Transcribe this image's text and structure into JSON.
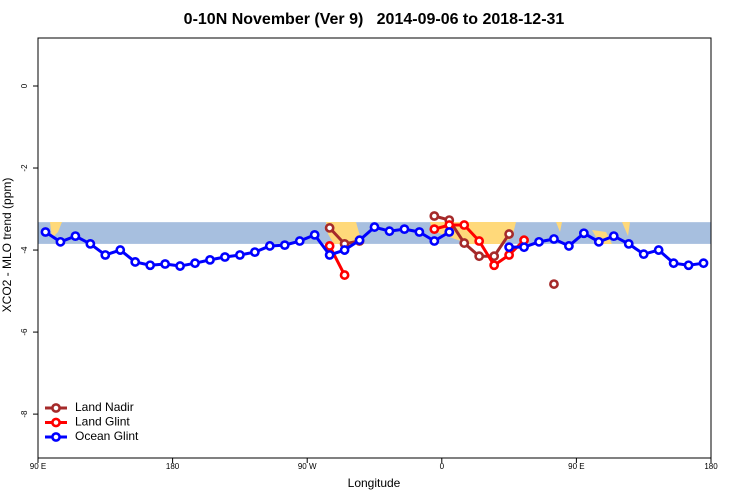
{
  "chart_data": {
    "type": "line",
    "title": "0-10N November (Ver 9)   2014-09-06 to 2018-12-31",
    "x_label": "Longitude",
    "y_label": "XCO2 - MLO trend (ppm)",
    "x": [
      95,
      105,
      115,
      125,
      135,
      145,
      155,
      165,
      175,
      185,
      195,
      205,
      215,
      225,
      235,
      245,
      255,
      265,
      275,
      285,
      295,
      305,
      315,
      325,
      335,
      345,
      355,
      365,
      375,
      385,
      395,
      405,
      415,
      425,
      435,
      445,
      455,
      465,
      475,
      485,
      495,
      505,
      515,
      525,
      535
    ],
    "series": [
      {
        "name": "Land Nadir",
        "color": "#a52a2a",
        "values": [
          null,
          null,
          null,
          null,
          null,
          null,
          null,
          null,
          null,
          null,
          null,
          null,
          null,
          null,
          null,
          null,
          null,
          null,
          null,
          -3.46,
          -3.85,
          -3.78,
          null,
          null,
          null,
          null,
          -3.17,
          -3.27,
          -3.83,
          -4.15,
          -4.15,
          -3.61,
          null,
          null,
          -4.83,
          null,
          null,
          null,
          null,
          null,
          null,
          null,
          null,
          null,
          null
        ]
      },
      {
        "name": "Land Glint",
        "color": "#ff0000",
        "values": [
          null,
          null,
          null,
          null,
          null,
          null,
          null,
          null,
          null,
          null,
          null,
          null,
          null,
          null,
          null,
          null,
          null,
          null,
          null,
          -3.9,
          -4.61,
          null,
          null,
          null,
          null,
          null,
          -3.49,
          -3.39,
          -3.39,
          -3.78,
          -4.37,
          -4.12,
          -3.76,
          null,
          null,
          null,
          null,
          null,
          null,
          null,
          null,
          null,
          null,
          null,
          null
        ]
      },
      {
        "name": "Ocean Glint",
        "color": "#0000ff",
        "values": [
          -3.56,
          -3.8,
          -3.66,
          -3.85,
          -4.12,
          -4.0,
          -4.29,
          -4.37,
          -4.34,
          -4.39,
          -4.32,
          -4.24,
          -4.17,
          -4.12,
          -4.05,
          -3.9,
          -3.88,
          -3.78,
          -3.63,
          -4.12,
          -4.0,
          -3.76,
          -3.44,
          -3.54,
          -3.49,
          -3.56,
          -3.78,
          -3.56,
          null,
          null,
          null,
          -3.93,
          -3.93,
          -3.8,
          -3.73,
          -3.9,
          -3.59,
          -3.8,
          -3.66,
          -3.85,
          -4.1,
          -4.0,
          -4.32,
          -4.37,
          -4.32
        ]
      }
    ],
    "band": [
      -3.85,
      -3.32
    ],
    "band_color": "#a7bfdf",
    "xlim": [
      90,
      540
    ],
    "xticks": [
      {
        "value": 90,
        "label": "90 E"
      },
      180,
      {
        "value": 270,
        "label": "90 W"
      },
      {
        "value": 360,
        "label": "0"
      },
      {
        "value": 450,
        "label": "90 E"
      },
      {
        "value": 540,
        "label": "180"
      }
    ],
    "ylim": [
      -9.07,
      1.17
    ],
    "yticks": [
      0,
      -2,
      -4,
      -6,
      -8
    ],
    "legend": "bottom-left"
  }
}
